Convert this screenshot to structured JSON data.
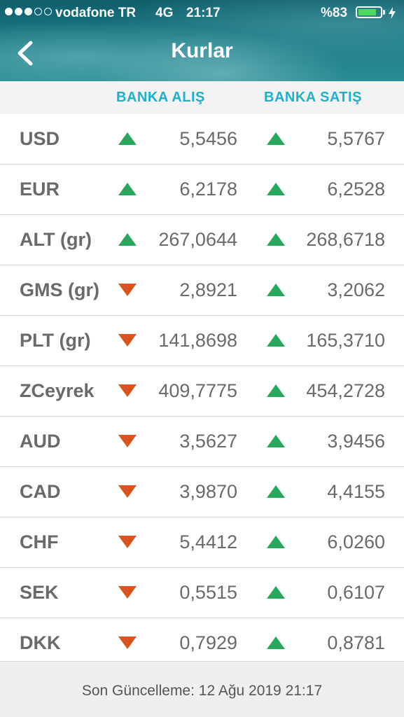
{
  "status_bar": {
    "carrier": "vodafone TR",
    "network": "4G",
    "time": "21:17",
    "battery": "%83",
    "battery_level": 0.83,
    "signal_bars": 3,
    "signal_total": 5
  },
  "header": {
    "title": "Kurlar",
    "back_icon": "chevron-left-icon"
  },
  "columns": {
    "buy": "BANKA ALIŞ",
    "sell": "BANKA SATIŞ"
  },
  "colors": {
    "accent": "#1fb1c7",
    "up": "#27a85a",
    "down": "#d9531e",
    "text": "#6a6a6a"
  },
  "rates": [
    {
      "code": "USD",
      "buy": "5,5456",
      "buy_trend": "up",
      "sell": "5,5767",
      "sell_trend": "up"
    },
    {
      "code": "EUR",
      "buy": "6,2178",
      "buy_trend": "up",
      "sell": "6,2528",
      "sell_trend": "up"
    },
    {
      "code": "ALT (gr)",
      "buy": "267,0644",
      "buy_trend": "up",
      "sell": "268,6718",
      "sell_trend": "up"
    },
    {
      "code": "GMS (gr)",
      "buy": "2,8921",
      "buy_trend": "down",
      "sell": "3,2062",
      "sell_trend": "up"
    },
    {
      "code": "PLT (gr)",
      "buy": "141,8698",
      "buy_trend": "down",
      "sell": "165,3710",
      "sell_trend": "up"
    },
    {
      "code": "ZCeyrek",
      "buy": "409,7775",
      "buy_trend": "down",
      "sell": "454,2728",
      "sell_trend": "up"
    },
    {
      "code": "AUD",
      "buy": "3,5627",
      "buy_trend": "down",
      "sell": "3,9456",
      "sell_trend": "up"
    },
    {
      "code": "CAD",
      "buy": "3,9870",
      "buy_trend": "down",
      "sell": "4,4155",
      "sell_trend": "up"
    },
    {
      "code": "CHF",
      "buy": "5,4412",
      "buy_trend": "down",
      "sell": "6,0260",
      "sell_trend": "up"
    },
    {
      "code": "SEK",
      "buy": "0,5515",
      "buy_trend": "down",
      "sell": "0,6107",
      "sell_trend": "up"
    },
    {
      "code": "DKK",
      "buy": "0,7929",
      "buy_trend": "down",
      "sell": "0,8781",
      "sell_trend": "up"
    }
  ],
  "footer": {
    "last_update": "Son Güncelleme: 12 Ağu 2019 21:17"
  }
}
